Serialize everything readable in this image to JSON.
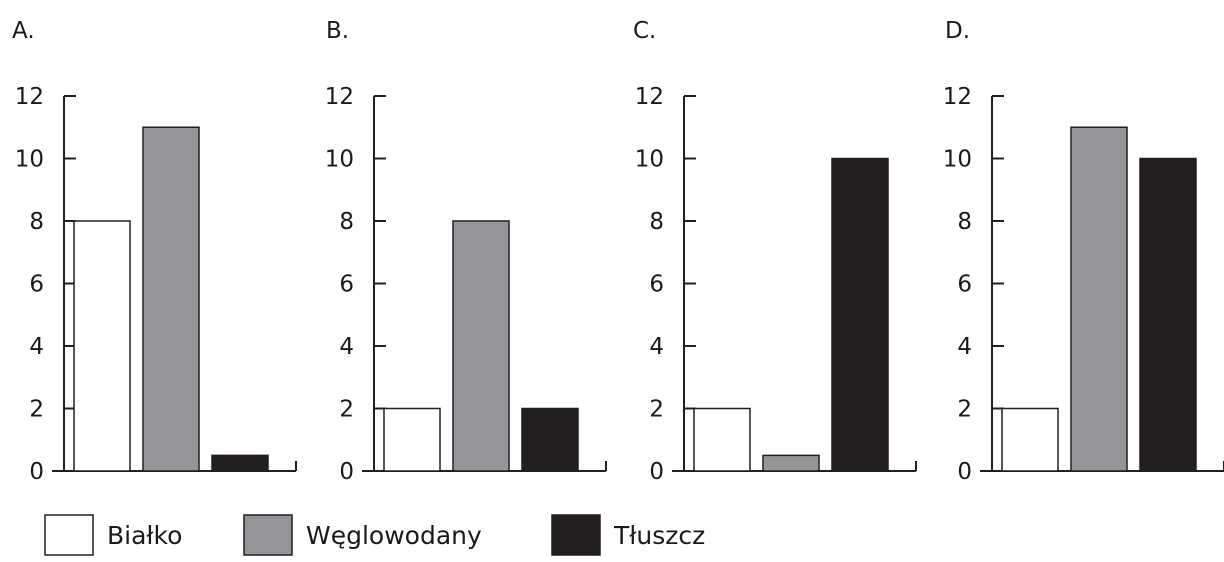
{
  "chart_data": {
    "type": "bar",
    "categories": [
      "Białko",
      "Węglowodany",
      "Tłuszcz"
    ],
    "ylim": [
      0,
      12
    ],
    "yticks": [
      0,
      2,
      4,
      6,
      8,
      10,
      12
    ],
    "legend": {
      "placement": "bottom",
      "entries": [
        {
          "name": "Białko",
          "color": "#ffffff"
        },
        {
          "name": "Węglowodany",
          "color": "#939598"
        },
        {
          "name": "Tłuszcz",
          "color": "#231f20"
        }
      ]
    },
    "panels": [
      {
        "label": "A.",
        "values": [
          8,
          11,
          0.5
        ]
      },
      {
        "label": "B.",
        "values": [
          2,
          8,
          2
        ]
      },
      {
        "label": "C.",
        "values": [
          2,
          0.5,
          10
        ]
      },
      {
        "label": "D.",
        "values": [
          2,
          11,
          10
        ]
      }
    ]
  }
}
